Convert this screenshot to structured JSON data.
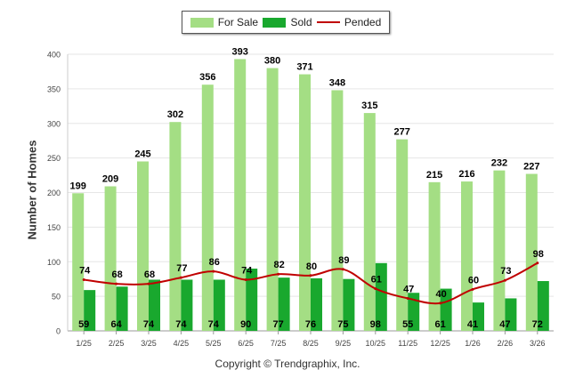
{
  "legend": {
    "items": [
      {
        "label": "For Sale",
        "color": "#a4de84"
      },
      {
        "label": "Sold",
        "color": "#19a82e"
      },
      {
        "label": "Pended",
        "color": "#c00000"
      }
    ]
  },
  "copyright": "Copyright © Trendgraphix, Inc.",
  "chart_data": {
    "type": "bar",
    "title": "",
    "xlabel": "",
    "ylabel": "Number of Homes",
    "ylim": [
      0,
      400
    ],
    "yticks": [
      0,
      50,
      100,
      150,
      200,
      250,
      300,
      350,
      400
    ],
    "grid": true,
    "legend_position": "top",
    "categories": [
      "1/25",
      "2/25",
      "3/25",
      "4/25",
      "5/25",
      "6/25",
      "7/25",
      "8/25",
      "9/25",
      "10/25",
      "11/25",
      "12/25",
      "1/26",
      "2/26",
      "3/26"
    ],
    "series": [
      {
        "name": "For Sale",
        "type": "bar",
        "color": "#a4de84",
        "values": [
          199,
          209,
          245,
          302,
          356,
          393,
          380,
          371,
          348,
          315,
          277,
          215,
          216,
          232,
          227
        ]
      },
      {
        "name": "Sold",
        "type": "bar",
        "color": "#19a82e",
        "values": [
          59,
          64,
          74,
          74,
          74,
          90,
          77,
          76,
          75,
          98,
          55,
          61,
          41,
          47,
          72
        ]
      },
      {
        "name": "Pended",
        "type": "line",
        "color": "#c00000",
        "values": [
          74,
          68,
          68,
          77,
          86,
          74,
          82,
          80,
          89,
          61,
          47,
          40,
          60,
          73,
          98
        ]
      }
    ]
  }
}
